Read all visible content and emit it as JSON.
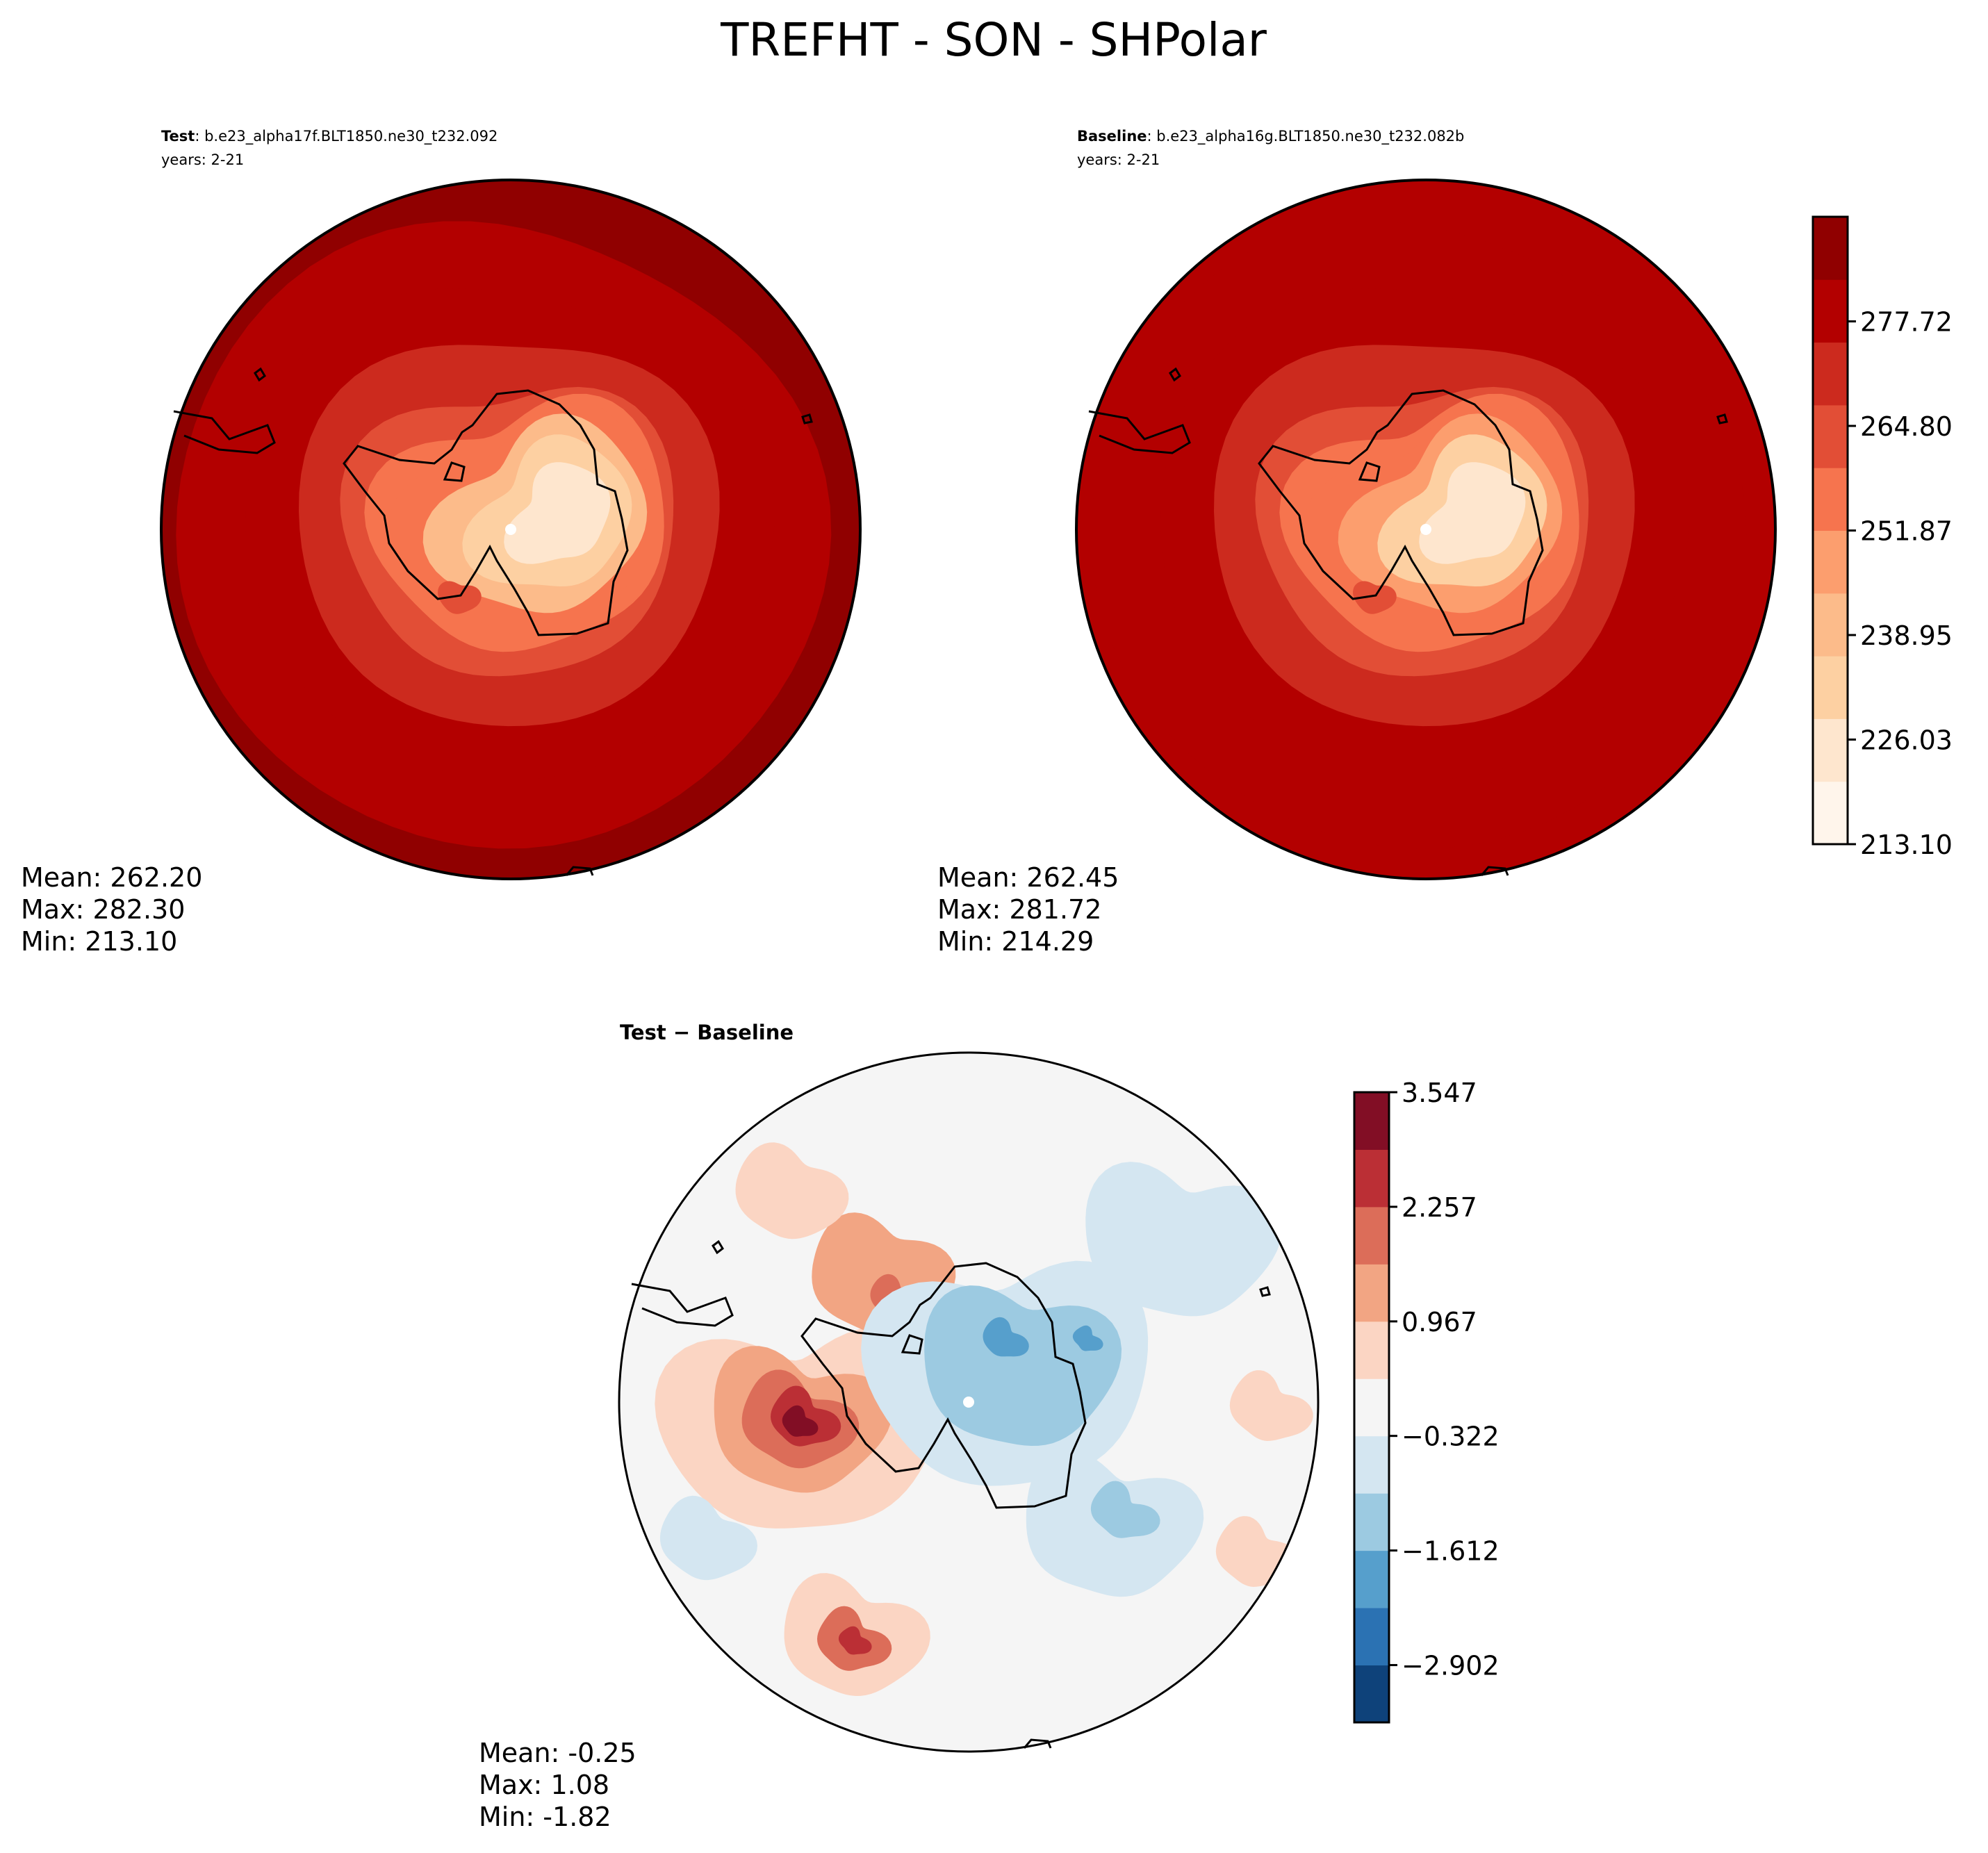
{
  "figure": {
    "title": "TREFHT - SON - SHPolar"
  },
  "chart_data": [
    {
      "type": "heatmap",
      "panel": "test",
      "header_bold": "Test",
      "header_rest": ": b.e23_alpha17f.BLT1850.ne30_t232.092",
      "years": "years: 2-21",
      "stats": {
        "mean": "Mean: 262.20",
        "max": "Max: 282.30",
        "min": "Min: 213.10"
      },
      "field_levels": [
        283,
        281,
        276,
        270,
        265,
        259,
        252,
        244,
        235,
        225
      ]
    },
    {
      "type": "heatmap",
      "panel": "baseline",
      "header_bold": "Baseline",
      "header_rest": ": b.e23_alpha16g.BLT1850.ne30_t232.082b",
      "years": "years: 2-21",
      "stats": {
        "mean": "Mean: 262.45",
        "max": "Max: 281.72",
        "min": "Min: 214.29"
      },
      "field_levels": [
        282,
        281,
        276,
        270,
        265,
        259,
        252,
        245,
        236,
        226
      ]
    },
    {
      "type": "heatmap",
      "panel": "diff",
      "header": "Test − Baseline",
      "stats": {
        "mean": "Mean: -0.25",
        "max": "Max:  1.08",
        "min": "Min: -1.82"
      }
    }
  ],
  "colorbars": {
    "main": {
      "ticks": [
        "213.10",
        "226.03",
        "238.95",
        "251.87",
        "264.80",
        "277.72"
      ],
      "range": [
        213.1,
        290.65
      ],
      "colors": [
        "#fff5eb",
        "#fee6ce",
        "#fdd0a2",
        "#fdae6b",
        "#fd8d3c",
        "#f16913",
        "#e6550d",
        "#d94801",
        "#b30000",
        "#8c0000"
      ],
      "bins": [
        "#fff5eb",
        "#fee6ce",
        "#fdd0a2",
        "#fcbb8a",
        "#fc9e6e",
        "#f6744e",
        "#e24e36",
        "#cc2a1e",
        "#b30000",
        "#900000"
      ]
    },
    "diff": {
      "ticks": [
        "−2.902",
        "−1.612",
        "−0.322",
        "0.967",
        "2.257",
        "3.547"
      ],
      "range": [
        -3.547,
        3.547
      ],
      "bins": [
        "#0e427a",
        "#2b72b3",
        "#569fcc",
        "#9ccae1",
        "#d4e6f1",
        "#f5f5f5",
        "#fbd5c3",
        "#f2a583",
        "#dc6d59",
        "#bb2f35",
        "#820e25"
      ]
    }
  }
}
